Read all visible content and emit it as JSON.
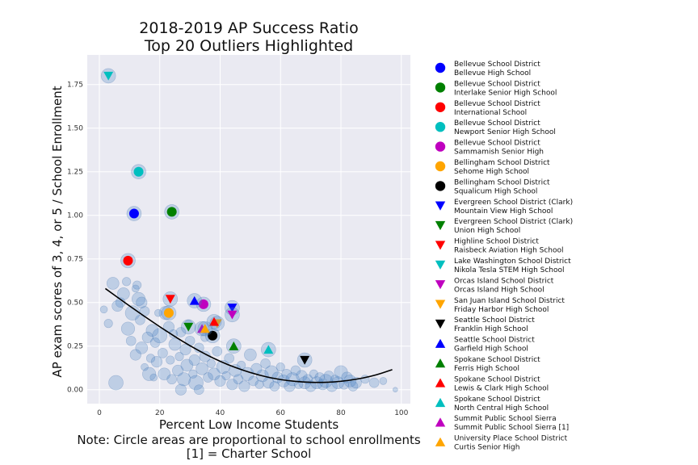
{
  "chart_data": {
    "type": "scatter",
    "title": "2018-2019 AP Success Ratio",
    "subtitle": "Top 20 Outliers Highlighted",
    "xlabel": "Percent Low Income Students",
    "ylabel": "AP exam scores of 3, 4, or 5 / School Enrollment",
    "notes": [
      "Note: Circle areas are proportional to school enrollments",
      "[1] = Charter School"
    ],
    "xlim": [
      -4,
      103
    ],
    "ylim": [
      -0.08,
      1.92
    ],
    "xticks": [
      0,
      20,
      40,
      60,
      80,
      100
    ],
    "yticks": [
      0.0,
      0.25,
      0.5,
      0.75,
      1.0,
      1.25,
      1.5,
      1.75
    ],
    "xtick_labels": [
      "0",
      "20",
      "40",
      "60",
      "80",
      "100"
    ],
    "ytick_labels": [
      "0.00",
      "0.25",
      "0.50",
      "0.75",
      "1.00",
      "1.25",
      "1.50",
      "1.75"
    ],
    "grid": true,
    "legend_position": "outside-right",
    "background_color": "#eaeaf2",
    "fit_curve": {
      "points": [
        [
          2,
          0.58
        ],
        [
          10,
          0.48
        ],
        [
          20,
          0.36
        ],
        [
          30,
          0.25
        ],
        [
          40,
          0.16
        ],
        [
          50,
          0.095
        ],
        [
          60,
          0.055
        ],
        [
          70,
          0.04
        ],
        [
          80,
          0.045
        ],
        [
          90,
          0.075
        ],
        [
          97,
          0.115
        ]
      ],
      "color": "#000000"
    },
    "background_points": [
      [
        1.5,
        0.46,
        6
      ],
      [
        4.5,
        0.61,
        10
      ],
      [
        5.5,
        0.04,
        12
      ],
      [
        7,
        0.5,
        8
      ],
      [
        8,
        0.55,
        10
      ],
      [
        9,
        0.62,
        7
      ],
      [
        9.5,
        0.35,
        11
      ],
      [
        10.5,
        0.28,
        8
      ],
      [
        11,
        0.44,
        12
      ],
      [
        12,
        0.2,
        9
      ],
      [
        13,
        0.52,
        11
      ],
      [
        13.5,
        0.4,
        8
      ],
      [
        14,
        0.24,
        10
      ],
      [
        15,
        0.13,
        6
      ],
      [
        16,
        0.3,
        9
      ],
      [
        16.5,
        0.09,
        11
      ],
      [
        17,
        0.18,
        7
      ],
      [
        17.5,
        0.34,
        10
      ],
      [
        18,
        0.07,
        6
      ],
      [
        18.5,
        0.27,
        8
      ],
      [
        19,
        0.16,
        9
      ],
      [
        20,
        0.31,
        12
      ],
      [
        21,
        0.21,
        8
      ],
      [
        21.5,
        0.09,
        10
      ],
      [
        22,
        0.44,
        11
      ],
      [
        23,
        0.36,
        9
      ],
      [
        23.5,
        0.17,
        7
      ],
      [
        24,
        0.06,
        8
      ],
      [
        25,
        0.26,
        10
      ],
      [
        26,
        0.11,
        9
      ],
      [
        26.5,
        0.19,
        7
      ],
      [
        27,
        0.33,
        8
      ],
      [
        28,
        0.06,
        11
      ],
      [
        28.5,
        0.23,
        9
      ],
      [
        29,
        0.14,
        10
      ],
      [
        30,
        0.28,
        8
      ],
      [
        31,
        0.09,
        7
      ],
      [
        31.5,
        0.17,
        9
      ],
      [
        32,
        0.04,
        12
      ],
      [
        33,
        0.24,
        8
      ],
      [
        34,
        0.12,
        10
      ],
      [
        35,
        0.19,
        9
      ],
      [
        36,
        0.07,
        8
      ],
      [
        37,
        0.15,
        7
      ],
      [
        38,
        0.09,
        10
      ],
      [
        39,
        0.22,
        8
      ],
      [
        40,
        0.05,
        9
      ],
      [
        41,
        0.13,
        11
      ],
      [
        42,
        0.08,
        7
      ],
      [
        43,
        0.18,
        8
      ],
      [
        44,
        0.03,
        9
      ],
      [
        45,
        0.11,
        10
      ],
      [
        46,
        0.06,
        8
      ],
      [
        47,
        0.14,
        7
      ],
      [
        48,
        0.02,
        9
      ],
      [
        49,
        0.09,
        11
      ],
      [
        50,
        0.2,
        10
      ],
      [
        51,
        0.05,
        8
      ],
      [
        52,
        0.12,
        9
      ],
      [
        53,
        0.03,
        7
      ],
      [
        54,
        0.08,
        10
      ],
      [
        55,
        0.15,
        8
      ],
      [
        56,
        0.04,
        9
      ],
      [
        57,
        0.1,
        11
      ],
      [
        58,
        0.02,
        8
      ],
      [
        59,
        0.07,
        9
      ],
      [
        60,
        0.13,
        7
      ],
      [
        61,
        0.05,
        10
      ],
      [
        62,
        0.09,
        8
      ],
      [
        63,
        0.02,
        9
      ],
      [
        64,
        0.06,
        11
      ],
      [
        65,
        0.11,
        8
      ],
      [
        66,
        0.03,
        7
      ],
      [
        67,
        0.08,
        9
      ],
      [
        68,
        0.04,
        10
      ],
      [
        69,
        0.06,
        8
      ],
      [
        70,
        0.02,
        9
      ],
      [
        71,
        0.09,
        7
      ],
      [
        72,
        0.04,
        10
      ],
      [
        73,
        0.07,
        8
      ],
      [
        74,
        0.03,
        9
      ],
      [
        75,
        0.05,
        11
      ],
      [
        76,
        0.08,
        8
      ],
      [
        77,
        0.02,
        9
      ],
      [
        78,
        0.06,
        7
      ],
      [
        79,
        0.04,
        10
      ],
      [
        80,
        0.1,
        11
      ],
      [
        81,
        0.03,
        8
      ],
      [
        82,
        0.07,
        9
      ],
      [
        83,
        0.05,
        10
      ],
      [
        84,
        0.02,
        8
      ],
      [
        85,
        0.04,
        9
      ],
      [
        88,
        0.06,
        7
      ],
      [
        91,
        0.04,
        8
      ],
      [
        94,
        0.05,
        6
      ],
      [
        98,
        0.0,
        4
      ],
      [
        3,
        0.38,
        7
      ],
      [
        6,
        0.48,
        9
      ],
      [
        12.5,
        0.6,
        7
      ],
      [
        15,
        0.45,
        8
      ],
      [
        19.5,
        0.44,
        6
      ],
      [
        24.5,
        0.32,
        7
      ],
      [
        29.5,
        0.38,
        6
      ],
      [
        35,
        0.3,
        7
      ],
      [
        12,
        0.58,
        6
      ],
      [
        14,
        0.5,
        9
      ],
      [
        27,
        0.0,
        9
      ],
      [
        33,
        0.0,
        8
      ]
    ],
    "highlights": [
      {
        "district": "Bellevue School District",
        "school": "Bellevue High School",
        "x": 11.5,
        "y": 1.01,
        "marker": "circle",
        "color": "#0000ff"
      },
      {
        "district": "Bellevue School District",
        "school": "Interlake Senior High School",
        "x": 24,
        "y": 1.02,
        "marker": "circle",
        "color": "#008000"
      },
      {
        "district": "Bellevue School District",
        "school": "International School",
        "x": 9.5,
        "y": 0.74,
        "marker": "circle",
        "color": "#ff0000"
      },
      {
        "district": "Bellevue School District",
        "school": "Newport Senior High School",
        "x": 13,
        "y": 1.25,
        "marker": "circle",
        "color": "#00bfbf"
      },
      {
        "district": "Bellevue School District",
        "school": "Sammamish Senior High",
        "x": 34.5,
        "y": 0.49,
        "marker": "circle",
        "color": "#bf00bf"
      },
      {
        "district": "Bellingham School District",
        "school": "Sehome High School",
        "x": 23,
        "y": 0.44,
        "marker": "circle",
        "color": "#ffa500"
      },
      {
        "district": "Bellingham School District",
        "school": "Squalicum High School",
        "x": 37.5,
        "y": 0.31,
        "marker": "circle",
        "color": "#000000"
      },
      {
        "district": "Evergreen School District (Clark)",
        "school": "Mountain View High School",
        "x": 44,
        "y": 0.47,
        "marker": "triangle_down",
        "color": "#0000ff"
      },
      {
        "district": "Evergreen School District (Clark)",
        "school": "Union High School",
        "x": 29.5,
        "y": 0.36,
        "marker": "triangle_down",
        "color": "#008000"
      },
      {
        "district": "Highline School District",
        "school": "Raisbeck Aviation High School",
        "x": 23.5,
        "y": 0.52,
        "marker": "triangle_down",
        "color": "#ff0000"
      },
      {
        "district": "Lake Washington School District",
        "school": "Nikola Tesla STEM High School",
        "x": 3,
        "y": 1.8,
        "marker": "triangle_down",
        "color": "#00bfbf"
      },
      {
        "district": "Orcas Island School District",
        "school": "Orcas Island High School",
        "x": 44,
        "y": 0.43,
        "marker": "triangle_down",
        "color": "#bf00bf"
      },
      {
        "district": "San Juan Island School District",
        "school": "Friday Harbor High School",
        "x": 39,
        "y": 0.38,
        "marker": "triangle_down",
        "color": "#ffa500"
      },
      {
        "district": "Seattle School District",
        "school": "Franklin High School",
        "x": 68,
        "y": 0.17,
        "marker": "triangle_down",
        "color": "#000000"
      },
      {
        "district": "Seattle School District",
        "school": "Garfield High School",
        "x": 31.5,
        "y": 0.51,
        "marker": "triangle_up",
        "color": "#0000ff"
      },
      {
        "district": "Spokane School District",
        "school": "Ferris High School",
        "x": 44.5,
        "y": 0.25,
        "marker": "triangle_up",
        "color": "#008000"
      },
      {
        "district": "Spokane School District",
        "school": "Lewis & Clark High School",
        "x": 38,
        "y": 0.39,
        "marker": "triangle_up",
        "color": "#ff0000"
      },
      {
        "district": "Spokane School District",
        "school": "North Central High School",
        "x": 56,
        "y": 0.23,
        "marker": "triangle_up",
        "color": "#00bfbf"
      },
      {
        "district": "Summit Public School Sierra",
        "school": "Summit Public School Sierra [1]",
        "x": 34,
        "y": 0.35,
        "marker": "triangle_up",
        "color": "#bf00bf"
      },
      {
        "district": "University Place School District",
        "school": "Curtis Senior High",
        "x": 35,
        "y": 0.35,
        "marker": "triangle_up",
        "color": "#ffa500"
      }
    ]
  }
}
